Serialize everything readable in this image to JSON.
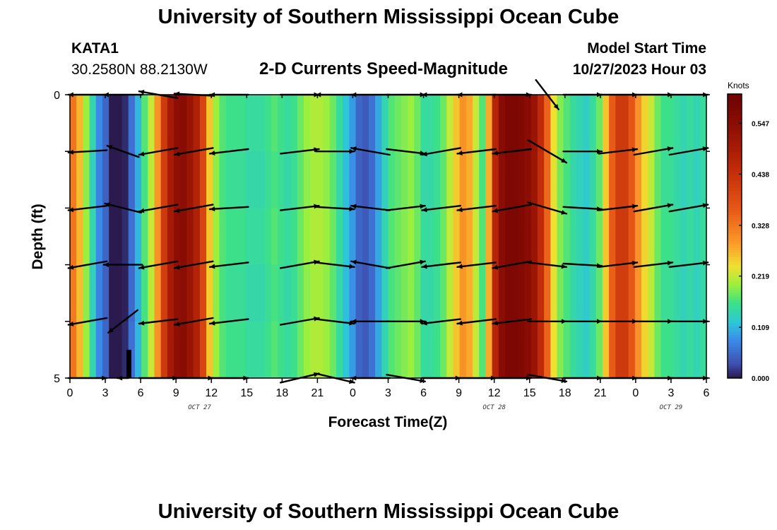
{
  "page": {
    "title_top": "University of Southern Mississippi Ocean Cube",
    "title_bottom": "University of Southern Mississippi Ocean Cube",
    "station_id": "KATA1",
    "station_coords": "30.2580N  88.2130W",
    "chart_title": "2-D Currents Speed-Magnitude",
    "model_start_label": "Model Start Time",
    "model_start_value": "10/27/2023 Hour 03"
  },
  "chart_data": {
    "type": "heatmap",
    "title": "2-D Currents Speed-Magnitude",
    "xlabel": "Forecast Time(Z)",
    "ylabel": "Depth (ft)",
    "x_hours": [
      0,
      54
    ],
    "x_tick_labels": [
      "0",
      "3",
      "6",
      "9",
      "12",
      "15",
      "18",
      "21",
      "0",
      "3",
      "6",
      "9",
      "12",
      "15",
      "18",
      "21",
      "0",
      "3",
      "6"
    ],
    "date_labels": [
      {
        "label": "OCT 27",
        "hour": 11
      },
      {
        "label": "OCT 28",
        "hour": 36
      },
      {
        "label": "OCT 29",
        "hour": 51
      }
    ],
    "ylim": [
      0,
      5
    ],
    "y_tick_labels": [
      "0",
      "5"
    ],
    "depth_rows": 5,
    "speed_by_column": [
      0.33,
      0.27,
      0.2,
      0.14,
      0.08,
      0.05,
      0.0,
      0.0,
      0.01,
      0.06,
      0.11,
      0.17,
      0.22,
      0.3,
      0.42,
      0.5,
      0.54,
      0.55,
      0.52,
      0.48,
      0.4,
      0.26,
      0.2,
      0.17,
      0.16,
      0.16,
      0.16,
      0.15,
      0.15,
      0.15,
      0.16,
      0.17,
      0.16,
      0.15,
      0.16,
      0.18,
      0.2,
      0.21,
      0.21,
      0.2,
      0.18,
      0.15,
      0.12,
      0.09,
      0.05,
      0.04,
      0.06,
      0.1,
      0.14,
      0.17,
      0.18,
      0.19,
      0.2,
      0.18,
      0.15,
      0.15,
      0.16,
      0.18,
      0.22,
      0.26,
      0.3,
      0.28,
      0.22,
      0.17,
      0.28,
      0.47,
      0.55,
      0.58,
      0.58,
      0.57,
      0.55,
      0.52,
      0.45,
      0.35,
      0.24,
      0.19,
      0.17,
      0.15,
      0.14,
      0.13,
      0.15,
      0.18,
      0.26,
      0.36,
      0.42,
      0.42,
      0.37,
      0.3,
      0.25,
      0.22,
      0.18,
      0.16,
      0.16,
      0.15,
      0.14,
      0.15,
      0.14,
      0.15
    ],
    "vectors": [
      {
        "hour": 1.5,
        "rows": [
          [
            -1.7,
            0.0
          ],
          [
            -1.7,
            0.1
          ],
          [
            -1.7,
            0.2
          ],
          [
            -1.7,
            0.3
          ],
          [
            -1.7,
            0.3
          ],
          [
            1.7,
            0.0
          ]
        ]
      },
      {
        "hour": 4.5,
        "rows": [
          [
            -1.7,
            0.0
          ],
          [
            -1.4,
            -0.5
          ],
          [
            -1.6,
            -0.4
          ],
          [
            -1.7,
            0.0
          ],
          [
            -1.3,
            1.0
          ],
          [
            -0.5,
            0.0
          ]
        ]
      },
      {
        "hour": 7.5,
        "rows": [
          [
            -1.7,
            -0.3
          ],
          [
            -1.7,
            0.3
          ],
          [
            -1.7,
            0.3
          ],
          [
            -1.7,
            0.3
          ],
          [
            -1.7,
            0.2
          ],
          [
            1.7,
            0.0
          ]
        ]
      },
      {
        "hour": 10.5,
        "rows": [
          [
            -1.7,
            -0.1
          ],
          [
            -1.7,
            0.3
          ],
          [
            -1.7,
            0.3
          ],
          [
            -1.7,
            0.3
          ],
          [
            -1.7,
            0.3
          ],
          [
            1.7,
            0.0
          ]
        ]
      },
      {
        "hour": 13.5,
        "rows": [
          [
            -1.7,
            0.0
          ],
          [
            -1.7,
            0.2
          ],
          [
            -1.7,
            0.1
          ],
          [
            -1.7,
            0.2
          ],
          [
            -1.7,
            0.2
          ],
          [
            1.7,
            0.0
          ]
        ]
      },
      {
        "hour": 19.5,
        "rows": [
          [
            1.7,
            0.0
          ],
          [
            1.7,
            -0.2
          ],
          [
            1.7,
            -0.2
          ],
          [
            1.7,
            -0.3
          ],
          [
            1.7,
            -0.3
          ],
          [
            1.7,
            -0.4
          ]
        ]
      },
      {
        "hour": 22.5,
        "rows": [
          [
            -1.7,
            0.0
          ],
          [
            1.7,
            0.0
          ],
          [
            1.7,
            0.1
          ],
          [
            1.7,
            0.2
          ],
          [
            1.7,
            0.2
          ],
          [
            1.7,
            0.4
          ]
        ]
      },
      {
        "hour": 25.5,
        "rows": [
          [
            -1.7,
            0.0
          ],
          [
            -1.7,
            -0.3
          ],
          [
            -1.7,
            -0.2
          ],
          [
            -1.7,
            -0.3
          ],
          [
            -1.7,
            0.0
          ],
          [
            -1.7,
            0.0
          ]
        ]
      },
      {
        "hour": 28.5,
        "rows": [
          [
            1.7,
            0.0
          ],
          [
            1.7,
            0.2
          ],
          [
            1.7,
            -0.2
          ],
          [
            1.7,
            -0.3
          ],
          [
            1.7,
            0.0
          ],
          [
            1.7,
            0.3
          ]
        ]
      },
      {
        "hour": 31.5,
        "rows": [
          [
            -1.7,
            0.0
          ],
          [
            -1.7,
            0.3
          ],
          [
            -1.7,
            0.2
          ],
          [
            -1.7,
            0.2
          ],
          [
            -1.7,
            0.2
          ],
          [
            1.7,
            0.0
          ]
        ]
      },
      {
        "hour": 34.5,
        "rows": [
          [
            -1.7,
            0.0
          ],
          [
            -1.7,
            0.2
          ],
          [
            -1.7,
            0.2
          ],
          [
            -1.7,
            0.2
          ],
          [
            -1.7,
            0.2
          ],
          [
            1.7,
            0.0
          ]
        ]
      },
      {
        "hour": 37.5,
        "rows": [
          [
            1.7,
            0.0
          ],
          [
            -1.7,
            0.2
          ],
          [
            -1.7,
            0.3
          ],
          [
            -1.7,
            0.3
          ],
          [
            -1.7,
            0.2
          ],
          [
            1.7,
            0.0
          ]
        ]
      },
      {
        "hour": 40.5,
        "rows": [
          [
            1.0,
            1.3
          ],
          [
            1.7,
            1.0
          ],
          [
            1.7,
            0.5
          ],
          [
            1.7,
            0.2
          ],
          [
            1.7,
            0.0
          ],
          [
            1.7,
            0.3
          ]
        ]
      },
      {
        "hour": 43.5,
        "rows": [
          [
            1.7,
            0.0
          ],
          [
            1.7,
            0.0
          ],
          [
            1.7,
            0.1
          ],
          [
            1.7,
            0.1
          ],
          [
            1.7,
            0.0
          ],
          [
            1.7,
            0.0
          ]
        ]
      },
      {
        "hour": 46.5,
        "rows": [
          [
            1.7,
            0.0
          ],
          [
            1.7,
            -0.2
          ],
          [
            1.7,
            -0.2
          ],
          [
            1.7,
            -0.2
          ],
          [
            1.7,
            0.0
          ],
          [
            1.7,
            0.0
          ]
        ]
      },
      {
        "hour": 49.5,
        "rows": [
          [
            1.7,
            0.0
          ],
          [
            1.7,
            -0.3
          ],
          [
            1.7,
            -0.3
          ],
          [
            1.7,
            -0.2
          ],
          [
            1.7,
            0.0
          ],
          [
            1.7,
            0.0
          ]
        ]
      },
      {
        "hour": 52.5,
        "rows": [
          [
            1.7,
            0.0
          ],
          [
            1.7,
            -0.3
          ],
          [
            1.7,
            -0.3
          ],
          [
            1.7,
            -0.2
          ],
          [
            1.7,
            0.0
          ],
          [
            1.7,
            0.0
          ]
        ]
      }
    ],
    "black_bar": {
      "hour": 5,
      "depth_from": 4.5,
      "depth_to": 5
    },
    "colorbar": {
      "units": "Knots",
      "tick_labels": [
        "0.547",
        "0.438",
        "0.328",
        "0.219",
        "0.109",
        "0.000"
      ],
      "tick_values": [
        0.547,
        0.438,
        0.328,
        0.219,
        0.109,
        0.0
      ],
      "vmin": 0.0,
      "vmax": 0.61,
      "stops": [
        {
          "v": 0.0,
          "c": "#2a1a4d"
        },
        {
          "v": 0.03,
          "c": "#3f4fb0"
        },
        {
          "v": 0.08,
          "c": "#3b8ae8"
        },
        {
          "v": 0.12,
          "c": "#2cc8d8"
        },
        {
          "v": 0.16,
          "c": "#3ce08a"
        },
        {
          "v": 0.2,
          "c": "#9cef3c"
        },
        {
          "v": 0.24,
          "c": "#f0e030"
        },
        {
          "v": 0.29,
          "c": "#fb9a2a"
        },
        {
          "v": 0.36,
          "c": "#e85a18"
        },
        {
          "v": 0.45,
          "c": "#c02a08"
        },
        {
          "v": 0.54,
          "c": "#8e0e04"
        },
        {
          "v": 0.61,
          "c": "#6e0202"
        }
      ]
    }
  }
}
